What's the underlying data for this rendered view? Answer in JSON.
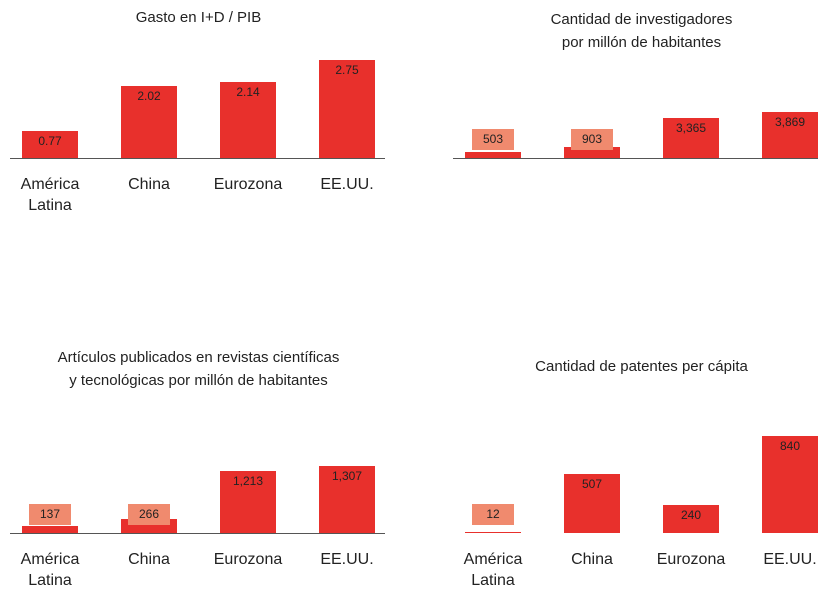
{
  "chart_data": [
    {
      "type": "bar",
      "title": "Gasto en I+D / PIB",
      "categories": [
        "América\nLatina",
        "China",
        "Eurozona",
        "EE.UU."
      ],
      "values": [
        0.77,
        2.02,
        2.14,
        2.75
      ],
      "color": "#e8302c",
      "small_label_color": "#f08a6e",
      "ylim": [
        0,
        3
      ]
    },
    {
      "type": "bar",
      "title": "Cantidad de investigadores\npor millón de habitantes",
      "categories": [
        null,
        null,
        null,
        null
      ],
      "values": [
        503,
        903,
        3365,
        3869
      ],
      "value_labels": [
        "503",
        "903",
        "3,365",
        "3,869"
      ],
      "color": "#e8302c",
      "small_label_color": "#f08a6e",
      "ylim": [
        0,
        4000
      ]
    },
    {
      "type": "bar",
      "title": "Artículos publicados en revistas científicas\ny tecnológicas por millón de habitantes",
      "categories": [
        "América\nLatina",
        "China",
        "Eurozona",
        "EE.UU."
      ],
      "values": [
        137,
        266,
        1213,
        1307
      ],
      "value_labels": [
        "137",
        "266",
        "1,213",
        "1,307"
      ],
      "color": "#e8302c",
      "small_label_color": "#f08a6e",
      "ylim": [
        0,
        1400
      ]
    },
    {
      "type": "bar",
      "title": "Cantidad de patentes per cápita",
      "categories": [
        "América\nLatina",
        "China",
        "Eurozona",
        "EE.UU."
      ],
      "values": [
        12,
        507,
        240,
        840
      ],
      "color": "#e8302c",
      "small_label_color": "#f08a6e",
      "ylim": [
        0,
        900
      ]
    }
  ]
}
